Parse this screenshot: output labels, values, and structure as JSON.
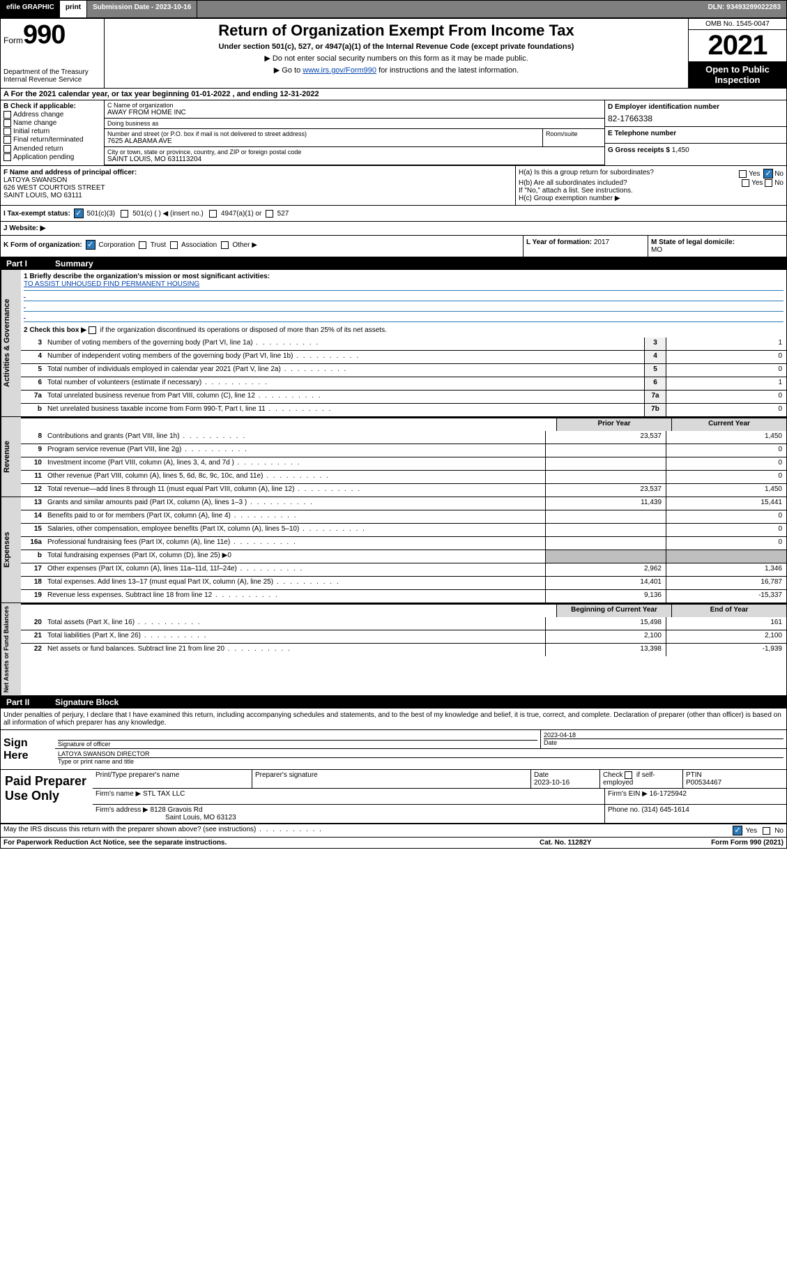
{
  "topbar": {
    "efile": "efile GRAPHIC",
    "graphic": "print",
    "subdate_label": "Submission Date - 2023-10-16",
    "dln": "DLN: 93493289022283"
  },
  "header": {
    "form_prefix": "Form",
    "form_number": "990",
    "title": "Return of Organization Exempt From Income Tax",
    "subtitle": "Under section 501(c), 527, or 4947(a)(1) of the Internal Revenue Code (except private foundations)",
    "note1": "▶ Do not enter social security numbers on this form as it may be made public.",
    "note2_pre": "▶ Go to ",
    "note2_link": "www.irs.gov/Form990",
    "note2_post": " for instructions and the latest information.",
    "dept": "Department of the Treasury\nInternal Revenue Service",
    "omb": "OMB No. 1545-0047",
    "year": "2021",
    "open_public": "Open to Public Inspection"
  },
  "row_a": {
    "text": "A For the 2021 calendar year, or tax year beginning 01-01-2022    , and ending 12-31-2022"
  },
  "col_b": {
    "label": "B Check if applicable:",
    "items": [
      "Address change",
      "Name change",
      "Initial return",
      "Final return/terminated",
      "Amended return",
      "Application pending"
    ]
  },
  "col_c": {
    "name_label": "C Name of organization",
    "name": "AWAY FROM HOME INC",
    "dba_label": "Doing business as",
    "dba": "",
    "street_label": "Number and street (or P.O. box if mail is not delivered to street address)",
    "street": "7625 ALABAMA AVE",
    "room_label": "Room/suite",
    "room": "",
    "city_label": "City or town, state or province, country, and ZIP or foreign postal code",
    "city": "SAINT LOUIS, MO  631113204"
  },
  "col_d": {
    "label": "D Employer identification number",
    "val": "82-1766338"
  },
  "col_e": {
    "label": "E Telephone number",
    "val": ""
  },
  "col_g": {
    "label": "G Gross receipts $",
    "val": "1,450"
  },
  "row_f": {
    "label": "F Name and address of principal officer:",
    "name": "LATOYA SWANSON",
    "addr1": "626 WEST COURTOIS STREET",
    "addr2": "SAINT LOUIS, MO  63111"
  },
  "row_h": {
    "ha_label": "H(a)  Is this a group return for subordinates?",
    "ha_yes": "Yes",
    "ha_no": "No",
    "hb_label": "H(b)  Are all subordinates included?",
    "hb_yes": "Yes",
    "hb_no": "No",
    "hb_note": "If \"No,\" attach a list. See instructions.",
    "hc_label": "H(c)  Group exemption number ▶"
  },
  "row_i": {
    "label": "I   Tax-exempt status:",
    "opt1": "501(c)(3)",
    "opt2": "501(c) (   ) ◀ (insert no.)",
    "opt3": "4947(a)(1) or",
    "opt4": "527"
  },
  "row_j": {
    "label": "J   Website: ▶"
  },
  "row_klm": {
    "k_label": "K Form of organization:",
    "k_opts": [
      "Corporation",
      "Trust",
      "Association",
      "Other ▶"
    ],
    "l_label": "L Year of formation:",
    "l_val": "2017",
    "m_label": "M State of legal domicile:",
    "m_val": "MO"
  },
  "part1": {
    "header_num": "Part I",
    "header_title": "Summary",
    "mission_label": "1   Briefly describe the organization's mission or most significant activities:",
    "mission": "TO ASSIST UNHOUSED FIND PERMANENT HOUSING",
    "line2_label": "2   Check this box ▶",
    "line2_text": "if the organization discontinued its operations or disposed of more than 25% of its net assets.",
    "governance_rows": [
      {
        "num": "3",
        "desc": "Number of voting members of the governing body (Part VI, line 1a)",
        "box": "3",
        "val": "1"
      },
      {
        "num": "4",
        "desc": "Number of independent voting members of the governing body (Part VI, line 1b)",
        "box": "4",
        "val": "0"
      },
      {
        "num": "5",
        "desc": "Total number of individuals employed in calendar year 2021 (Part V, line 2a)",
        "box": "5",
        "val": "0"
      },
      {
        "num": "6",
        "desc": "Total number of volunteers (estimate if necessary)",
        "box": "6",
        "val": "1"
      },
      {
        "num": "7a",
        "desc": "Total unrelated business revenue from Part VIII, column (C), line 12",
        "box": "7a",
        "val": "0"
      },
      {
        "num": "b",
        "desc": "Net unrelated business taxable income from Form 990-T, Part I, line 11",
        "box": "7b",
        "val": "0"
      }
    ],
    "col_prior": "Prior Year",
    "col_current": "Current Year",
    "revenue_rows": [
      {
        "num": "8",
        "desc": "Contributions and grants (Part VIII, line 1h)",
        "prior": "23,537",
        "curr": "1,450"
      },
      {
        "num": "9",
        "desc": "Program service revenue (Part VIII, line 2g)",
        "prior": "",
        "curr": "0"
      },
      {
        "num": "10",
        "desc": "Investment income (Part VIII, column (A), lines 3, 4, and 7d )",
        "prior": "",
        "curr": "0"
      },
      {
        "num": "11",
        "desc": "Other revenue (Part VIII, column (A), lines 5, 6d, 8c, 9c, 10c, and 11e)",
        "prior": "",
        "curr": "0"
      },
      {
        "num": "12",
        "desc": "Total revenue—add lines 8 through 11 (must equal Part VIII, column (A), line 12)",
        "prior": "23,537",
        "curr": "1,450"
      }
    ],
    "expense_rows": [
      {
        "num": "13",
        "desc": "Grants and similar amounts paid (Part IX, column (A), lines 1–3 )",
        "prior": "11,439",
        "curr": "15,441"
      },
      {
        "num": "14",
        "desc": "Benefits paid to or for members (Part IX, column (A), line 4)",
        "prior": "",
        "curr": "0"
      },
      {
        "num": "15",
        "desc": "Salaries, other compensation, employee benefits (Part IX, column (A), lines 5–10)",
        "prior": "",
        "curr": "0"
      },
      {
        "num": "16a",
        "desc": "Professional fundraising fees (Part IX, column (A), line 11e)",
        "prior": "",
        "curr": "0"
      },
      {
        "num": "b",
        "desc": "Total fundraising expenses (Part IX, column (D), line 25) ▶0",
        "prior": "GREY",
        "curr": "GREY"
      },
      {
        "num": "17",
        "desc": "Other expenses (Part IX, column (A), lines 11a–11d, 11f–24e)",
        "prior": "2,962",
        "curr": "1,346"
      },
      {
        "num": "18",
        "desc": "Total expenses. Add lines 13–17 (must equal Part IX, column (A), line 25)",
        "prior": "14,401",
        "curr": "16,787"
      },
      {
        "num": "19",
        "desc": "Revenue less expenses. Subtract line 18 from line 12",
        "prior": "9,136",
        "curr": "-15,337"
      }
    ],
    "col_begin": "Beginning of Current Year",
    "col_end": "End of Year",
    "netasset_rows": [
      {
        "num": "20",
        "desc": "Total assets (Part X, line 16)",
        "prior": "15,498",
        "curr": "161"
      },
      {
        "num": "21",
        "desc": "Total liabilities (Part X, line 26)",
        "prior": "2,100",
        "curr": "2,100"
      },
      {
        "num": "22",
        "desc": "Net assets or fund balances. Subtract line 21 from line 20",
        "prior": "13,398",
        "curr": "-1,939"
      }
    ],
    "side_labels": {
      "governance": "Activities & Governance",
      "revenue": "Revenue",
      "expenses": "Expenses",
      "netassets": "Net Assets or Fund Balances"
    }
  },
  "part2": {
    "header_num": "Part II",
    "header_title": "Signature Block",
    "declaration": "Under penalties of perjury, I declare that I have examined this return, including accompanying schedules and statements, and to the best of my knowledge and belief, it is true, correct, and complete. Declaration of preparer (other than officer) is based on all information of which preparer has any knowledge.",
    "sign_here": "Sign Here",
    "sig_officer_label": "Signature of officer",
    "sig_date_label": "Date",
    "sig_date": "2023-04-18",
    "sig_name": "LATOYA SWANSON  DIRECTOR",
    "sig_name_label": "Type or print name and title",
    "paid": "Paid Preparer Use Only",
    "prep_name_label": "Print/Type preparer's name",
    "prep_sig_label": "Preparer's signature",
    "prep_date_label": "Date",
    "prep_date": "2023-10-16",
    "prep_check_label": "Check",
    "prep_check_if": "if self-employed",
    "prep_ptin_label": "PTIN",
    "prep_ptin": "P00534467",
    "firm_name_label": "Firm's name    ▶",
    "firm_name": "STL TAX LLC",
    "firm_ein_label": "Firm's EIN ▶",
    "firm_ein": "16-1725942",
    "firm_addr_label": "Firm's address ▶",
    "firm_addr1": "8128 Gravois Rd",
    "firm_addr2": "Saint Louis, MO  63123",
    "firm_phone_label": "Phone no.",
    "firm_phone": "(314) 645-1614"
  },
  "footer": {
    "discuss": "May the IRS discuss this return with the preparer shown above? (see instructions)",
    "yes": "Yes",
    "no": "No",
    "paperwork": "For Paperwork Reduction Act Notice, see the separate instructions.",
    "cat": "Cat. No. 11282Y",
    "form": "Form 990 (2021)"
  }
}
